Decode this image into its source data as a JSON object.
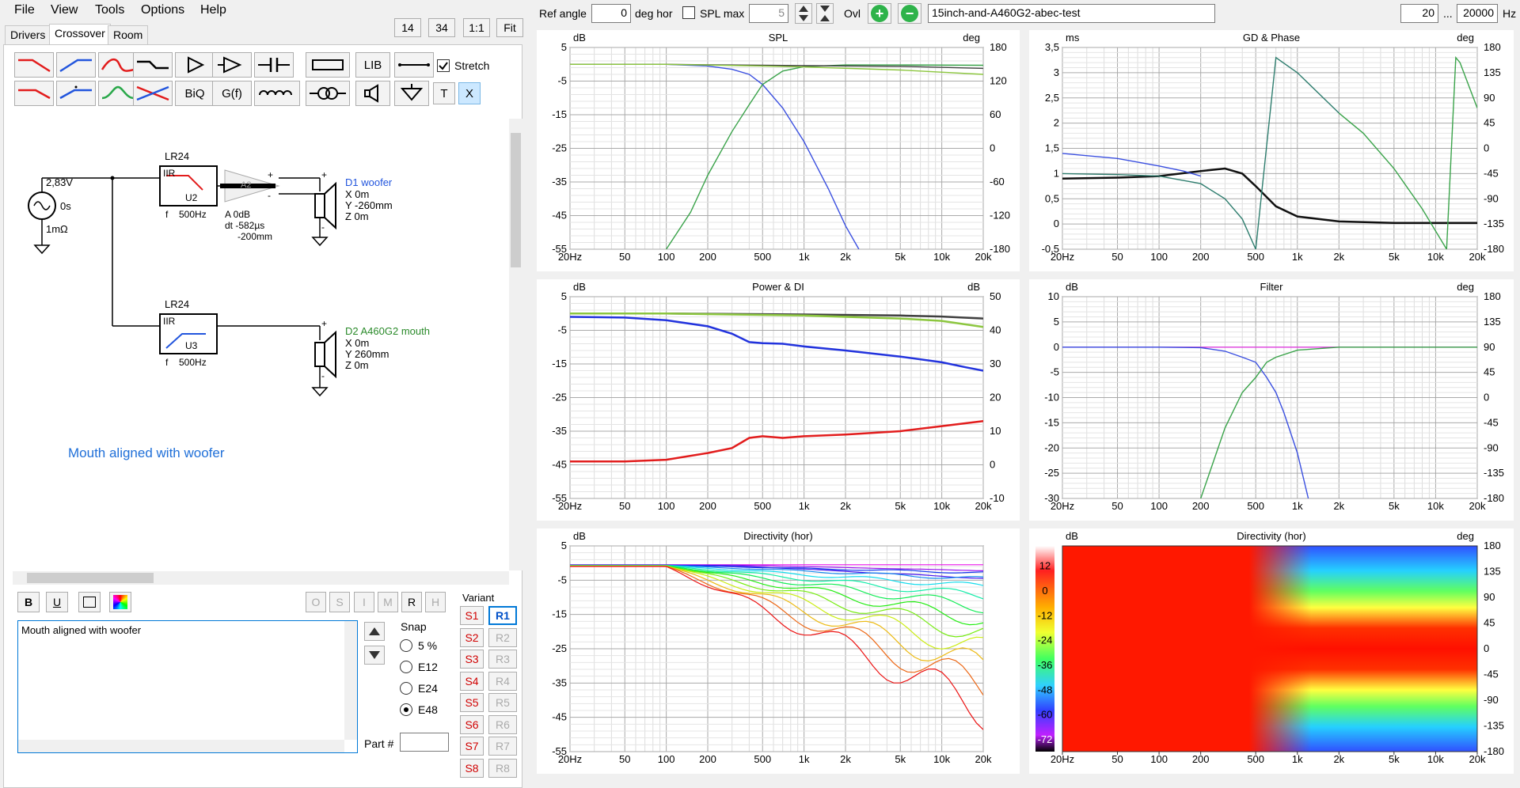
{
  "menu": [
    "File",
    "View",
    "Tools",
    "Options",
    "Help"
  ],
  "top_left_buttons": {
    "v1": "14",
    "v2": "34",
    "v3": "1:1",
    "v4": "Fit"
  },
  "tabs": [
    "Drivers",
    "Crossover",
    "Room"
  ],
  "active_tab": "Crossover",
  "toolbar": {
    "lib_label": "LIB",
    "biq_label": "BiQ",
    "gf_label": "G(f)",
    "t_label": "T",
    "x_label": "X",
    "stretch_label": "Stretch"
  },
  "schematic": {
    "source_voltage": "2,83V",
    "source_delay": "0s",
    "source_resistance": "1mΩ",
    "filter1": {
      "type": "LR24",
      "kind": "IIR",
      "unit": "U2",
      "freq_label": "f",
      "freq": "500Hz"
    },
    "amp": {
      "label": "A2",
      "gain": "A  0dB",
      "delay": "dt -582µs",
      "distance": "-200mm",
      "plus": "+",
      "minus": "-"
    },
    "driver1": {
      "name": "D1 woofer",
      "x": "X 0m",
      "y": "Y -260mm",
      "z": "Z 0m"
    },
    "filter2": {
      "type": "LR24",
      "kind": "IIR",
      "unit": "U3",
      "freq_label": "f",
      "freq": "500Hz"
    },
    "driver2": {
      "name": "D2 A460G2 mouth",
      "x": "X 0m",
      "y": "Y 260mm",
      "z": "Z 0m"
    },
    "annotation": "Mouth aligned with woofer",
    "plus": "+",
    "minus": "-"
  },
  "format_buttons": {
    "bold": "B",
    "underline": "U"
  },
  "right_small_buttons": [
    "O",
    "S",
    "I",
    "M",
    "R",
    "H"
  ],
  "notes_text": "Mouth aligned with woofer",
  "snap": {
    "title": "Snap",
    "options": [
      "5 %",
      "E12",
      "E24",
      "E48"
    ],
    "selected": "E48"
  },
  "part_label": "Part #",
  "variant": {
    "title": "Variant",
    "s": [
      "S1",
      "S2",
      "S3",
      "S4",
      "S5",
      "S6",
      "S7",
      "S8"
    ],
    "r": [
      "R1",
      "R2",
      "R3",
      "R4",
      "R5",
      "R6",
      "R7",
      "R8"
    ]
  },
  "topbar": {
    "ref_angle_label": "Ref angle",
    "ref_angle_value": "0",
    "deg_hor_label": "deg hor",
    "spl_max_label": "SPL max",
    "spl_max_value": "5",
    "ovl_label": "Ovl",
    "project_name": "15inch-and-A460G2-abec-test",
    "freq_low": "20",
    "freq_sep": "...",
    "freq_high": "20000",
    "hz_label": "Hz"
  },
  "colors": {
    "accent_blue": "#0063b1",
    "red_text": "#d00000",
    "green_text": "#2a8a2a"
  },
  "chart_data": [
    {
      "type": "line",
      "title": "SPL",
      "ylabel": "dB",
      "y2label": "deg",
      "ylim": [
        -55,
        5
      ],
      "yticks": [
        "5",
        "-5",
        "-15",
        "-25",
        "-35",
        "-45",
        "-55"
      ],
      "y2ticks": [
        "180",
        "120",
        "60",
        "0",
        "-60",
        "-120",
        "-180"
      ],
      "xticks": [
        "20Hz",
        "50",
        "100",
        "200",
        "500",
        "1k",
        "2k",
        "5k",
        "10k",
        "20k"
      ],
      "series": [
        {
          "color": "#3a4fe0",
          "x": [
            20,
            100,
            200,
            300,
            400,
            500,
            700,
            1000,
            1500,
            2000,
            2500
          ],
          "y": [
            0,
            0,
            -0.5,
            -1.5,
            -3,
            -6,
            -13,
            -23,
            -37,
            -48,
            -55
          ]
        },
        {
          "color": "#3aa34a",
          "x": [
            100,
            150,
            200,
            300,
            400,
            500,
            700,
            1000,
            2000,
            5000,
            20000
          ],
          "y": [
            -55,
            -44,
            -33,
            -20,
            -12,
            -6,
            -2,
            -0.7,
            -0.2,
            -0.2,
            -0.3
          ]
        },
        {
          "color": "#404040",
          "x": [
            20,
            100,
            500,
            1000,
            5000,
            20000
          ],
          "y": [
            0,
            0,
            -0.3,
            -0.4,
            -0.6,
            -1.2
          ]
        },
        {
          "color": "#8cc63f",
          "x": [
            20,
            100,
            500,
            1000,
            5000,
            20000
          ],
          "y": [
            0,
            0,
            -0.5,
            -0.8,
            -1.7,
            -3
          ]
        }
      ]
    },
    {
      "type": "line",
      "title": "GD & Phase",
      "ylabel": "ms",
      "y2label": "deg",
      "ylim": [
        -0.5,
        3.5
      ],
      "yticks": [
        "3,5",
        "3",
        "2,5",
        "2",
        "1,5",
        "1",
        "0,5",
        "0",
        "-0,5"
      ],
      "y2ticks": [
        "180",
        "135",
        "90",
        "45",
        "0",
        "-45",
        "-90",
        "-135",
        "-180"
      ],
      "xticks": [
        "20Hz",
        "50",
        "100",
        "200",
        "500",
        "1k",
        "2k",
        "5k",
        "10k",
        "20k"
      ],
      "series": [
        {
          "color": "#111111",
          "x": [
            20,
            50,
            100,
            200,
            300,
            400,
            500,
            700,
            1000,
            2000,
            5000,
            20000
          ],
          "y": [
            0.9,
            0.92,
            0.95,
            1.05,
            1.1,
            1.0,
            0.75,
            0.35,
            0.15,
            0.05,
            0.02,
            0.02
          ]
        },
        {
          "color": "#3a4fe0",
          "x": [
            20,
            50,
            100,
            150,
            200
          ],
          "y": [
            1.4,
            1.3,
            1.15,
            1.05,
            0.95
          ]
        },
        {
          "color": "#2e7d6e",
          "x": [
            20,
            50,
            100,
            200,
            300,
            400,
            500,
            700,
            1000,
            2000
          ],
          "y": [
            1,
            0.98,
            0.95,
            0.8,
            0.5,
            0.1,
            -0.5,
            3.3,
            3.0,
            2.2
          ]
        },
        {
          "color": "#3aa34a",
          "x": [
            2000,
            3000,
            5000,
            8000,
            12000,
            14000,
            15000,
            20000
          ],
          "y": [
            2.2,
            1.8,
            1.1,
            0.3,
            -0.5,
            3.3,
            3.2,
            2.3
          ]
        }
      ]
    },
    {
      "type": "line",
      "title": "Power & DI",
      "ylabel": "dB",
      "y2label": "dB",
      "ylim": [
        -55,
        5
      ],
      "yticks": [
        "5",
        "-5",
        "-15",
        "-25",
        "-35",
        "-45",
        "-55"
      ],
      "y2ticks": [
        "50",
        "40",
        "30",
        "20",
        "10",
        "0",
        "-10"
      ],
      "xticks": [
        "20Hz",
        "50",
        "100",
        "200",
        "500",
        "1k",
        "2k",
        "5k",
        "10k",
        "20k"
      ],
      "series": [
        {
          "color": "#404040",
          "x": [
            20,
            100,
            1000,
            5000,
            10000,
            20000
          ],
          "y": [
            0,
            0,
            -0.3,
            -0.6,
            -0.9,
            -1.5
          ]
        },
        {
          "color": "#8cc63f",
          "x": [
            20,
            100,
            1000,
            5000,
            10000,
            20000
          ],
          "y": [
            0,
            0,
            -0.6,
            -1.5,
            -2.2,
            -4
          ]
        },
        {
          "color": "#2233dd",
          "x": [
            20,
            50,
            100,
            200,
            300,
            400,
            500,
            700,
            1000,
            2000,
            5000,
            10000,
            15000,
            20000
          ],
          "y": [
            -1,
            -1.2,
            -2,
            -3.8,
            -6,
            -8.5,
            -8.8,
            -9,
            -9.8,
            -11,
            -12.8,
            -14.5,
            -16,
            -17
          ]
        },
        {
          "color": "#e21c1c",
          "x": [
            20,
            50,
            100,
            200,
            300,
            400,
            500,
            700,
            1000,
            2000,
            5000,
            10000,
            20000
          ],
          "y": [
            -44,
            -44,
            -43.5,
            -41.5,
            -40,
            -37,
            -36.5,
            -37,
            -36.5,
            -36,
            -35,
            -33.5,
            -32
          ]
        }
      ]
    },
    {
      "type": "line",
      "title": "Filter",
      "ylabel": "dB",
      "y2label": "deg",
      "ylim": [
        -30,
        10
      ],
      "yticks": [
        "10",
        "5",
        "0",
        "-5",
        "-10",
        "-15",
        "-20",
        "-25",
        "-30"
      ],
      "y2ticks": [
        "180",
        "135",
        "90",
        "45",
        "0",
        "-45",
        "-90",
        "-135",
        "-180"
      ],
      "xticks": [
        "20Hz",
        "50",
        "100",
        "200",
        "500",
        "1k",
        "2k",
        "5k",
        "10k",
        "20k"
      ],
      "series": [
        {
          "color": "#e040e0",
          "x": [
            20,
            20000
          ],
          "y": [
            0,
            0
          ]
        },
        {
          "color": "#3a4fe0",
          "x": [
            20,
            100,
            200,
            300,
            400,
            500,
            600,
            700,
            800,
            1000,
            1200
          ],
          "y": [
            0,
            0,
            -0.1,
            -0.8,
            -2,
            -3,
            -6,
            -9,
            -13,
            -21,
            -30
          ]
        },
        {
          "color": "#3aa34a",
          "x": [
            200,
            300,
            400,
            500,
            600,
            700,
            1000,
            2000,
            20000
          ],
          "y": [
            -30,
            -16,
            -9,
            -6,
            -3,
            -2,
            -0.6,
            0,
            0
          ]
        }
      ]
    },
    {
      "type": "line",
      "title": "Directivity (hor)",
      "ylabel": "dB",
      "ylim": [
        -55,
        5
      ],
      "yticks": [
        "5",
        "-5",
        "-15",
        "-25",
        "-35",
        "-45",
        "-55"
      ],
      "xticks": [
        "20Hz",
        "50",
        "100",
        "200",
        "500",
        "1k",
        "2k",
        "5k",
        "10k",
        "20k"
      ]
    },
    {
      "type": "heatmap",
      "title": "Directivity (hor)",
      "ylabel": "dB",
      "y2label": "deg",
      "colorbar_ticks": [
        "12",
        "0",
        "-12",
        "-24",
        "-36",
        "-48",
        "-60",
        "-72"
      ],
      "y2ticks": [
        "180",
        "135",
        "90",
        "45",
        "0",
        "-45",
        "-90",
        "-135",
        "-180"
      ],
      "xticks": [
        "20Hz",
        "50",
        "100",
        "200",
        "500",
        "1k",
        "2k",
        "5k",
        "10k",
        "20k"
      ]
    }
  ]
}
